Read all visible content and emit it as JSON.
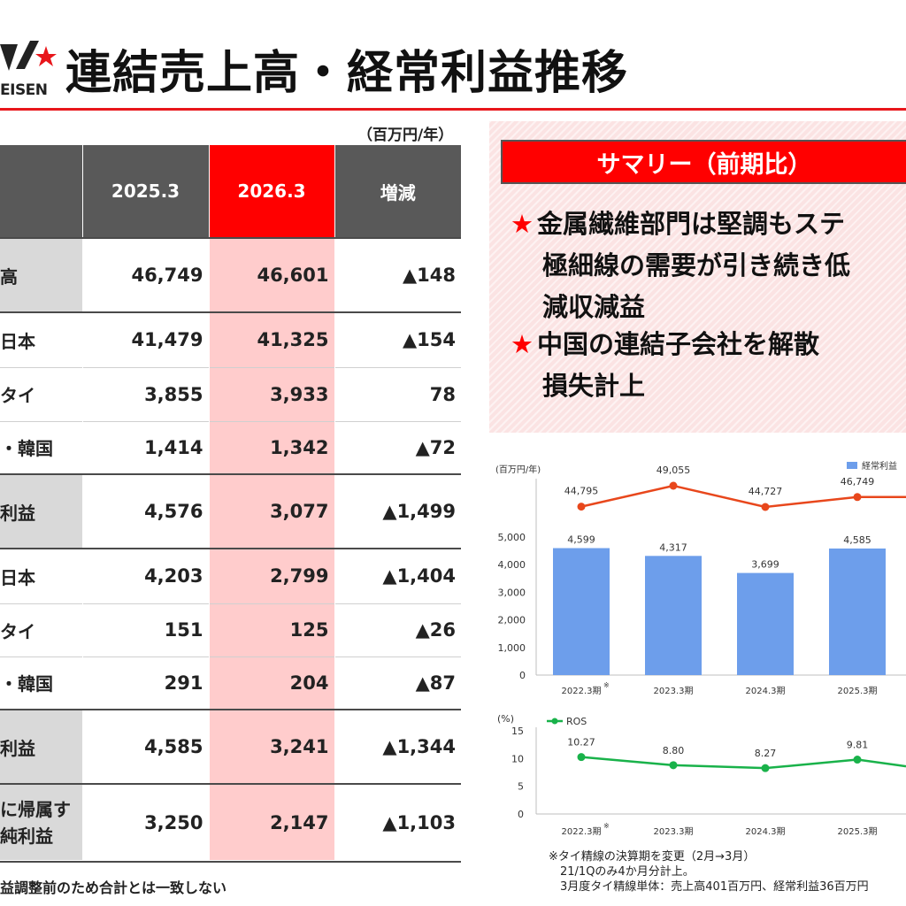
{
  "header": {
    "logo_text": "EISEN",
    "title": "連結売上高・経常利益推移"
  },
  "table": {
    "unit": "（百万円/年）",
    "columns": [
      "",
      "2025.3",
      "2026.3",
      "増減"
    ],
    "rows": [
      {
        "label": "高",
        "values": [
          "46,749",
          "46,601",
          "▲148"
        ],
        "header_row": true
      },
      {
        "label": "日本",
        "values": [
          "41,479",
          "41,325",
          "▲154"
        ]
      },
      {
        "label": "タイ",
        "values": [
          "3,855",
          "3,933",
          "78"
        ]
      },
      {
        "label": "・韓国",
        "values": [
          "1,414",
          "1,342",
          "▲72"
        ]
      },
      {
        "label": "利益",
        "values": [
          "4,576",
          "3,077",
          "▲1,499"
        ],
        "header_row": true
      },
      {
        "label": "日本",
        "values": [
          "4,203",
          "2,799",
          "▲1,404"
        ]
      },
      {
        "label": "タイ",
        "values": [
          "151",
          "125",
          "▲26"
        ]
      },
      {
        "label": "・韓国",
        "values": [
          "291",
          "204",
          "▲87"
        ]
      },
      {
        "label": "利益",
        "values": [
          "4,585",
          "3,241",
          "▲1,344"
        ],
        "header_row": true
      },
      {
        "label_line1": "に帰属す",
        "label_line2": "純利益",
        "values": [
          "3,250",
          "2,147",
          "▲1,103"
        ],
        "header_row": true
      }
    ],
    "note": "益調整前のため合計とは一致しない"
  },
  "summary": {
    "header": "サマリー（前期比）",
    "bullets": [
      {
        "lines": [
          "金属繊維部門は堅調もステ",
          "極細線の需要が引き続き低",
          "減収減益"
        ]
      },
      {
        "lines": [
          "中国の連結子会社を解散",
          "損失計上"
        ]
      }
    ]
  },
  "colors": {
    "brand_red": "#ff0000",
    "bar_blue": "#6d9eeb",
    "sales_line": "#e8471c",
    "ros_line": "#19b24a"
  },
  "chart_data": [
    {
      "type": "bar",
      "unit_label": "(百万円/年)",
      "categories": [
        "2022.3期",
        "2023.3期",
        "2024.3期",
        "2025.3期"
      ],
      "category_marks": [
        "※",
        "",
        "",
        ""
      ],
      "yticks": [
        "0",
        "1,000",
        "2,000",
        "3,000",
        "4,000",
        "5,000"
      ],
      "ylim": [
        0,
        5000
      ],
      "series": [
        {
          "name": "経常利益",
          "kind": "bar",
          "values": [
            4599,
            4317,
            3699,
            4585
          ],
          "labels": [
            "4,599",
            "4,317",
            "3,699",
            "4,585"
          ]
        },
        {
          "kind": "line",
          "values": [
            44795,
            49055,
            44727,
            46749
          ],
          "labels": [
            "44,795",
            "49,055",
            "44,727",
            "46,749"
          ]
        }
      ],
      "legend": "top-right"
    },
    {
      "type": "line",
      "unit_label": "(%)",
      "categories": [
        "2022.3期",
        "2023.3期",
        "2024.3期",
        "2025.3期"
      ],
      "category_marks": [
        "※",
        "",
        "",
        ""
      ],
      "yticks": [
        "0",
        "5",
        "10",
        "15"
      ],
      "ylim": [
        0,
        15
      ],
      "series": [
        {
          "name": "ROS",
          "values": [
            10.27,
            8.8,
            8.27,
            9.81
          ],
          "labels": [
            "10.27",
            "8.80",
            "8.27",
            "9.81"
          ]
        }
      ],
      "legend": "top-left"
    }
  ],
  "footnotes": [
    "※タイ精線の決算期を変更（2月→3月）",
    "　21/1Qのみ4か月分計上。",
    "　3月度タイ精線単体：売上高401百万円、経常利益36百万円"
  ]
}
